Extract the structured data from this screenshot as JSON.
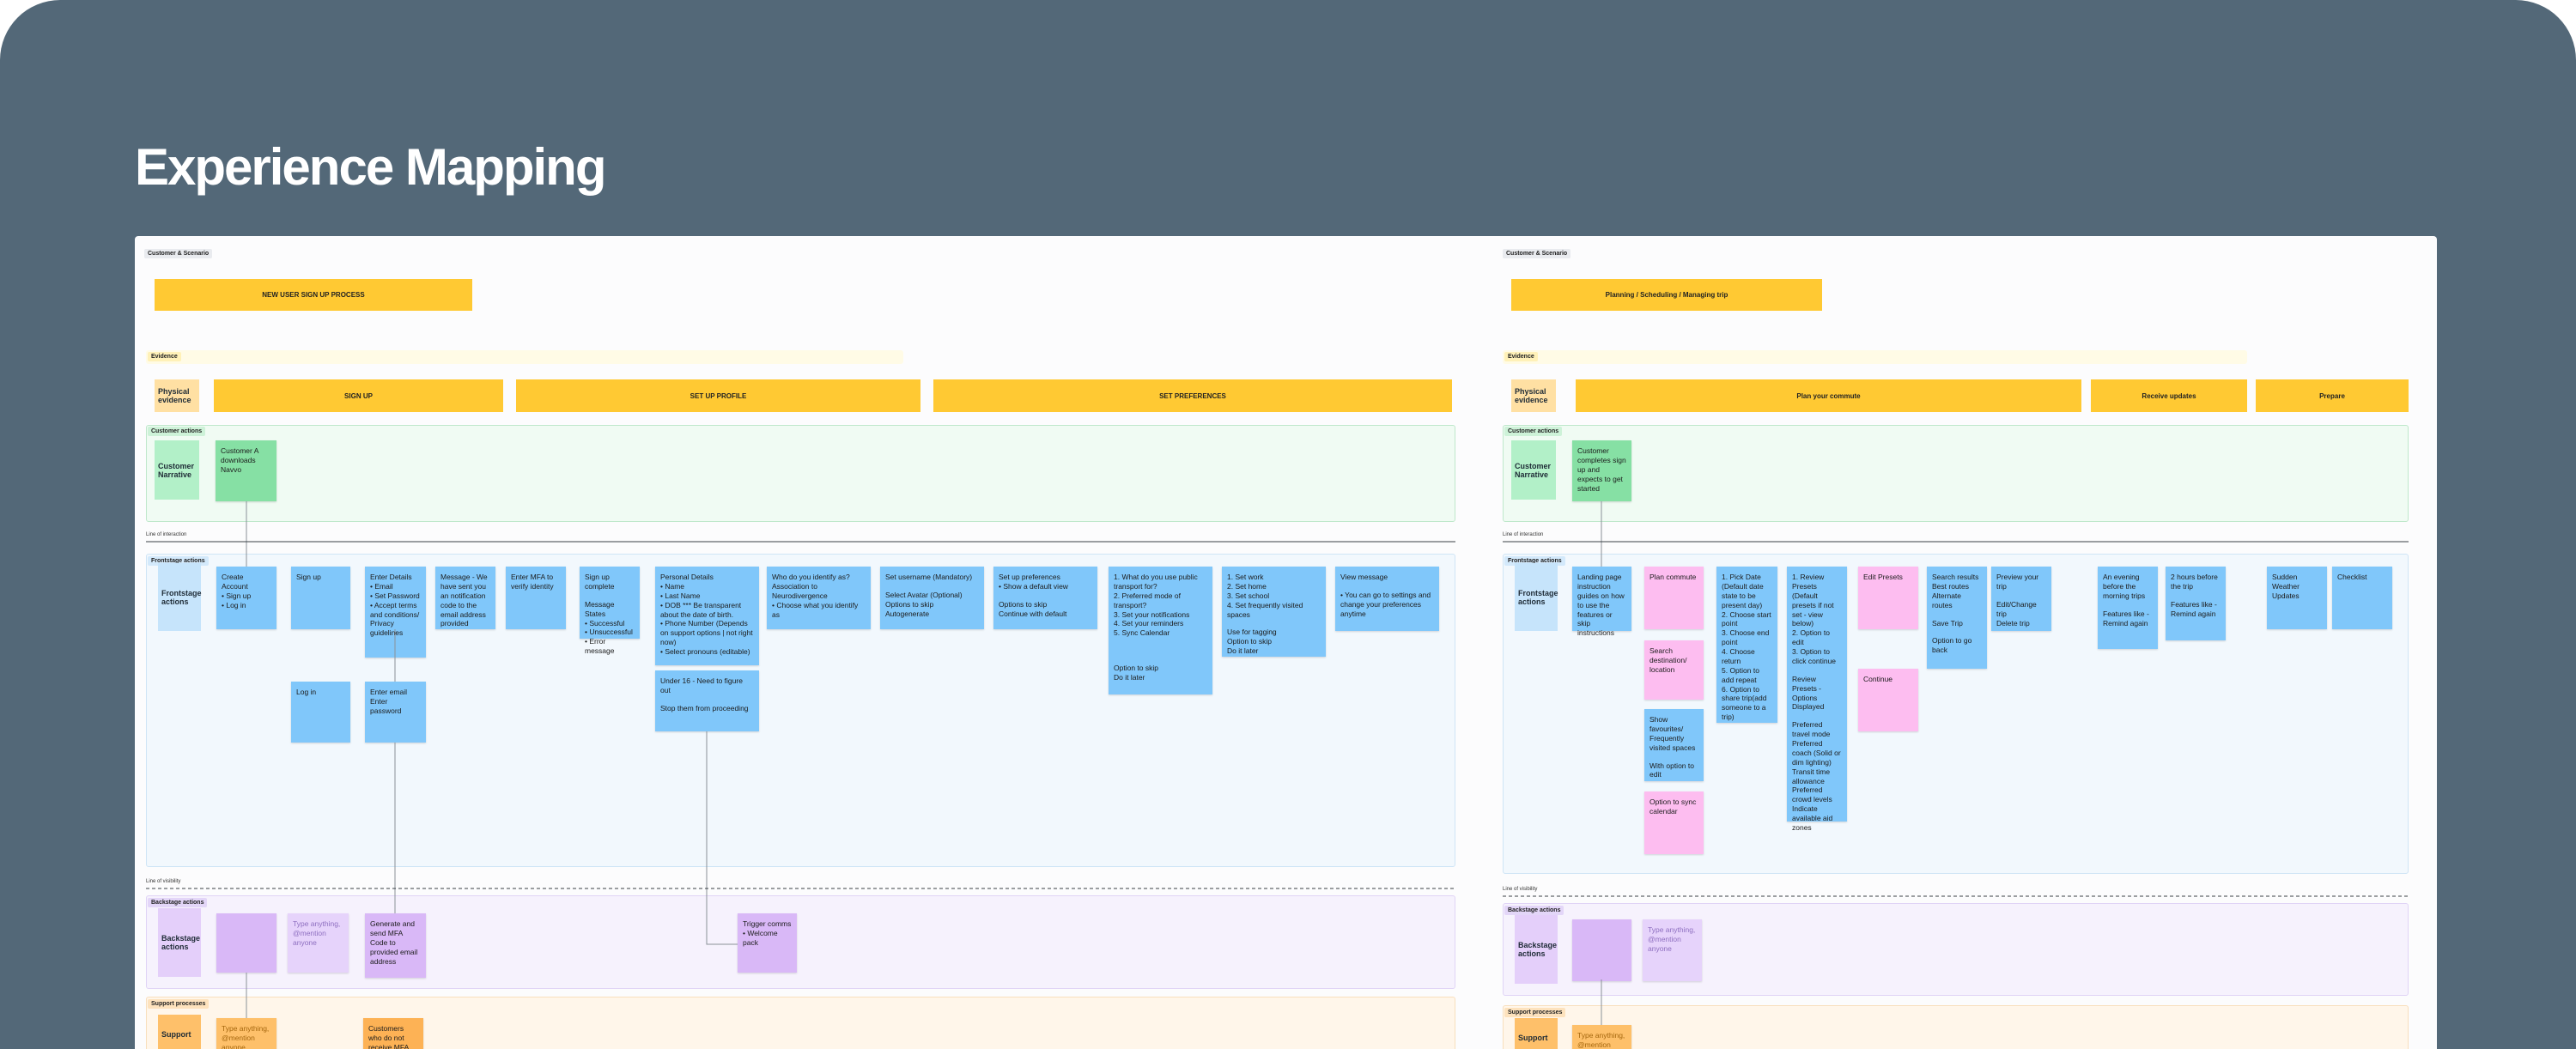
{
  "header": {
    "title": "Experience Mapping"
  },
  "boards": [
    {
      "scenario_label": "Customer & Scenario",
      "scenario": "NEW USER SIGN UP PROCESS",
      "evidence_label": "Evidence",
      "physical_evidence": "Physical evidence",
      "phases": [
        "SIGN UP",
        "SET UP PROFILE",
        "SET PREFERENCES"
      ],
      "customer_actions_label": "Customer actions",
      "customer_narrative": "Customer Narrative",
      "narrative_notes": [
        {
          "lines": [
            "Customer A downloads Navvo"
          ]
        }
      ],
      "line_of_interaction": "Line of interaction",
      "frontstage_label": "Frontstage actions",
      "frontstage_title": "Frontstage actions",
      "frontstage_notes": [
        {
          "lines": [
            "Create Account",
            "• Sign up",
            "• Log in"
          ]
        },
        {
          "lines": [
            "Sign up"
          ]
        },
        {
          "lines": [
            "Enter Details",
            "• Email",
            "• Set Password",
            "• Accept terms and conditions/ Privacy guidelines"
          ]
        },
        {
          "lines": [
            "Message - We have sent you an notification code to the email address provided"
          ]
        },
        {
          "lines": [
            "Enter MFA to verify identity"
          ]
        },
        {
          "lines": [
            "Sign up complete",
            "",
            "Message States",
            "• Successful",
            "• Unsuccessful",
            "• Error message"
          ]
        },
        {
          "lines": [
            "Personal Details",
            "• Name",
            "• Last Name",
            "• DOB *** Be transparent about the date of birth.",
            "• Phone Number (Depends on support options | not right now)",
            "• Select pronouns (editable)"
          ]
        },
        {
          "lines": [
            "Under 16 - Need to figure out",
            "",
            "Stop them from proceeding"
          ]
        },
        {
          "lines": [
            "Who do you identify as? Association to Neurodivergence",
            "• Choose what you identify as"
          ]
        },
        {
          "lines": [
            "Set username (Mandatory)",
            "",
            "Select Avatar (Optional)",
            "Options to skip",
            "Autogenerate"
          ]
        },
        {
          "lines": [
            "Set up preferences",
            "• Show a default view",
            "",
            "Options to skip",
            "Continue with default"
          ]
        },
        {
          "lines": [
            "1. What do you use public transport for?",
            "2. Preferred mode of transport?",
            "3. Set your notifications",
            "4. Set your reminders",
            "5. Sync Calendar",
            "",
            "",
            "",
            "Option to skip",
            "Do it later"
          ]
        },
        {
          "lines": [
            "1. Set work",
            "2. Set home",
            "3. Set school",
            "4. Set frequently visited spaces",
            "",
            "Use for tagging",
            "Option to skip",
            "Do it later"
          ]
        },
        {
          "lines": [
            "View message",
            "",
            "• You can go to settings and change your preferences anytime"
          ]
        },
        {
          "lines": [
            "Log in"
          ]
        },
        {
          "lines": [
            "Enter email",
            "Enter password"
          ]
        }
      ],
      "line_of_visibility": "Line of visibility",
      "backstage_label": "Backstage actions",
      "backstage_title": "Backstage actions",
      "backstage_notes": [
        {
          "lines": []
        },
        {
          "lines": [
            "Type anything, @mention anyone"
          ]
        },
        {
          "lines": [
            "Generate and send MFA Code to provided email address"
          ]
        },
        {
          "lines": [
            "Trigger comms",
            "• Welcome pack"
          ]
        }
      ],
      "support_label": "Support processes",
      "support_title": "Support",
      "support_notes": [
        {
          "lines": [
            "Type anything, @mention anyone"
          ]
        },
        {
          "lines": [
            "Customers who do not receive MFA"
          ]
        }
      ]
    },
    {
      "scenario_label": "Customer & Scenario",
      "scenario": "Planning / Scheduling / Managing trip",
      "evidence_label": "Evidence",
      "physical_evidence": "Physical evidence",
      "phases": [
        "Plan your commute",
        "Receive updates",
        "Prepare"
      ],
      "customer_actions_label": "Customer actions",
      "customer_narrative": "Customer Narrative",
      "narrative_notes": [
        {
          "lines": [
            "Customer completes sign up and expects to get started"
          ]
        }
      ],
      "line_of_interaction": "Line of interaction",
      "frontstage_label": "Frontstage actions",
      "frontstage_title": "Frontstage actions",
      "frontstage_notes": [
        {
          "lines": [
            "Landing page instruction guides on how to use the features or skip instructions"
          ]
        },
        {
          "lines": [
            "Plan commute"
          ]
        },
        {
          "lines": [
            "Search destination/ location"
          ]
        },
        {
          "lines": [
            "Show favourites/ Frequently visited spaces",
            "",
            "With option to edit"
          ]
        },
        {
          "lines": [
            "Option to sync calendar"
          ]
        },
        {
          "lines": [
            "1. Pick Date (Default date state to be present day)",
            "2. Choose start point",
            "3. Choose end point",
            "4. Choose return",
            "5. Option to add repeat",
            "6. Option to share trip(add someone to a trip)"
          ]
        },
        {
          "lines": [
            "1. Review Presets (Default presets if not set - view below)",
            "2. Option to edit",
            "3. Option to click continue",
            "",
            "Review Presets - Options Displayed",
            "",
            "Preferred travel mode",
            "Preferred coach (Solid or dim lighting)",
            "Transit time allowance",
            "Preferred crowd levels",
            "Indicate available aid zones"
          ]
        },
        {
          "lines": [
            "Edit Presets"
          ]
        },
        {
          "lines": [
            "Continue"
          ]
        },
        {
          "lines": [
            "Search results",
            "Best routes",
            "Alternate routes",
            "",
            "Save Trip",
            "",
            "Option to go back"
          ]
        },
        {
          "lines": [
            "Preview your trip",
            "",
            "Edit/Change trip",
            "Delete trip"
          ]
        },
        {
          "lines": [
            "An evening before the morning trips",
            "",
            "Features like - Remind again"
          ]
        },
        {
          "lines": [
            "2 hours before the trip",
            "",
            "Features like - Remind again"
          ]
        },
        {
          "lines": [
            "Sudden Weather Updates"
          ]
        },
        {
          "lines": [
            "Checklist"
          ]
        }
      ],
      "line_of_visibility": "Line of visibility",
      "backstage_label": "Backstage actions",
      "backstage_title": "Backstage actions",
      "backstage_notes": [
        {
          "lines": []
        },
        {
          "lines": [
            "Type anything, @mention anyone"
          ]
        }
      ],
      "support_label": "Support processes",
      "support_title": "Support",
      "support_notes": [
        {
          "lines": [
            "Type anything, @mention anyone"
          ]
        }
      ]
    }
  ]
}
